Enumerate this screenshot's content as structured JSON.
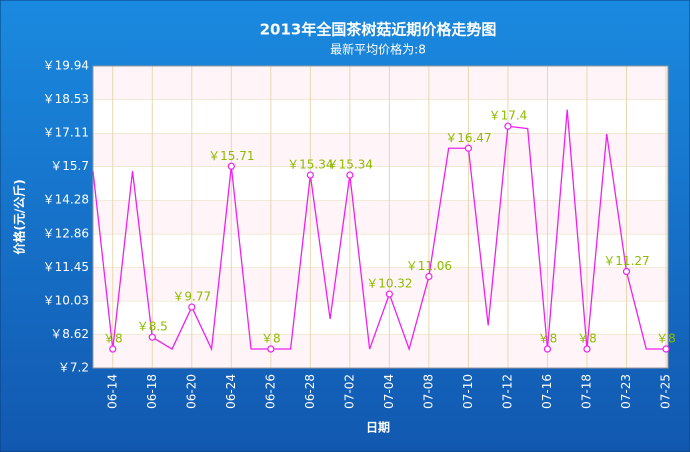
{
  "chart_data": {
    "type": "line",
    "title": "2013年全国茶树菇近期价格走势图",
    "subtitle": "最新平均价格为:8",
    "y_label": "价格(元/公斤)",
    "x_label": "日期",
    "categories": [
      null,
      "06-14",
      null,
      "06-18",
      null,
      "06-20",
      null,
      "06-24",
      null,
      "06-26",
      null,
      "06-28",
      null,
      "07-02",
      null,
      "07-04",
      null,
      "07-08",
      null,
      "07-10",
      null,
      "07-12",
      null,
      "07-16",
      null,
      "07-18",
      null,
      "07-23",
      null,
      "07-25"
    ],
    "series": [
      {
        "name": "价格",
        "color": "#ee22ee",
        "values": [
          15.5,
          8,
          15.5,
          8.5,
          8,
          9.77,
          8,
          15.71,
          8,
          8,
          8,
          15.34,
          9.27,
          15.34,
          8,
          10.32,
          8,
          11.06,
          16.47,
          16.47,
          9.0,
          17.4,
          17.3,
          8,
          18.1,
          8,
          17.07,
          11.27,
          8,
          8
        ],
        "value_labels": [
          null,
          "￥8",
          null,
          "￥8.5",
          null,
          "￥9.77",
          null,
          "￥15.71",
          null,
          "￥8",
          null,
          "￥15.34",
          null,
          "￥15.34",
          null,
          "￥10.32",
          null,
          "￥11.06",
          null,
          "￥16.47",
          null,
          "￥17.4",
          null,
          "￥8",
          null,
          "￥8",
          null,
          "￥11.27",
          null,
          "￥8"
        ]
      }
    ],
    "ylim": [
      7.2,
      19.94
    ],
    "yticks": [
      {
        "value": 7.2,
        "label": "￥7.2"
      },
      {
        "value": 8.62,
        "label": "￥8.62"
      },
      {
        "value": 10.03,
        "label": "￥10.03"
      },
      {
        "value": 11.45,
        "label": "￥11.45"
      },
      {
        "value": 12.86,
        "label": "￥12.86"
      },
      {
        "value": 14.28,
        "label": "￥14.28"
      },
      {
        "value": 15.7,
        "label": "￥15.7"
      },
      {
        "value": 17.11,
        "label": "￥17.11"
      },
      {
        "value": 18.53,
        "label": "￥18.53"
      },
      {
        "value": 19.94,
        "label": "￥19.94"
      }
    ],
    "grid": true,
    "label_color": "#8cbc00"
  }
}
